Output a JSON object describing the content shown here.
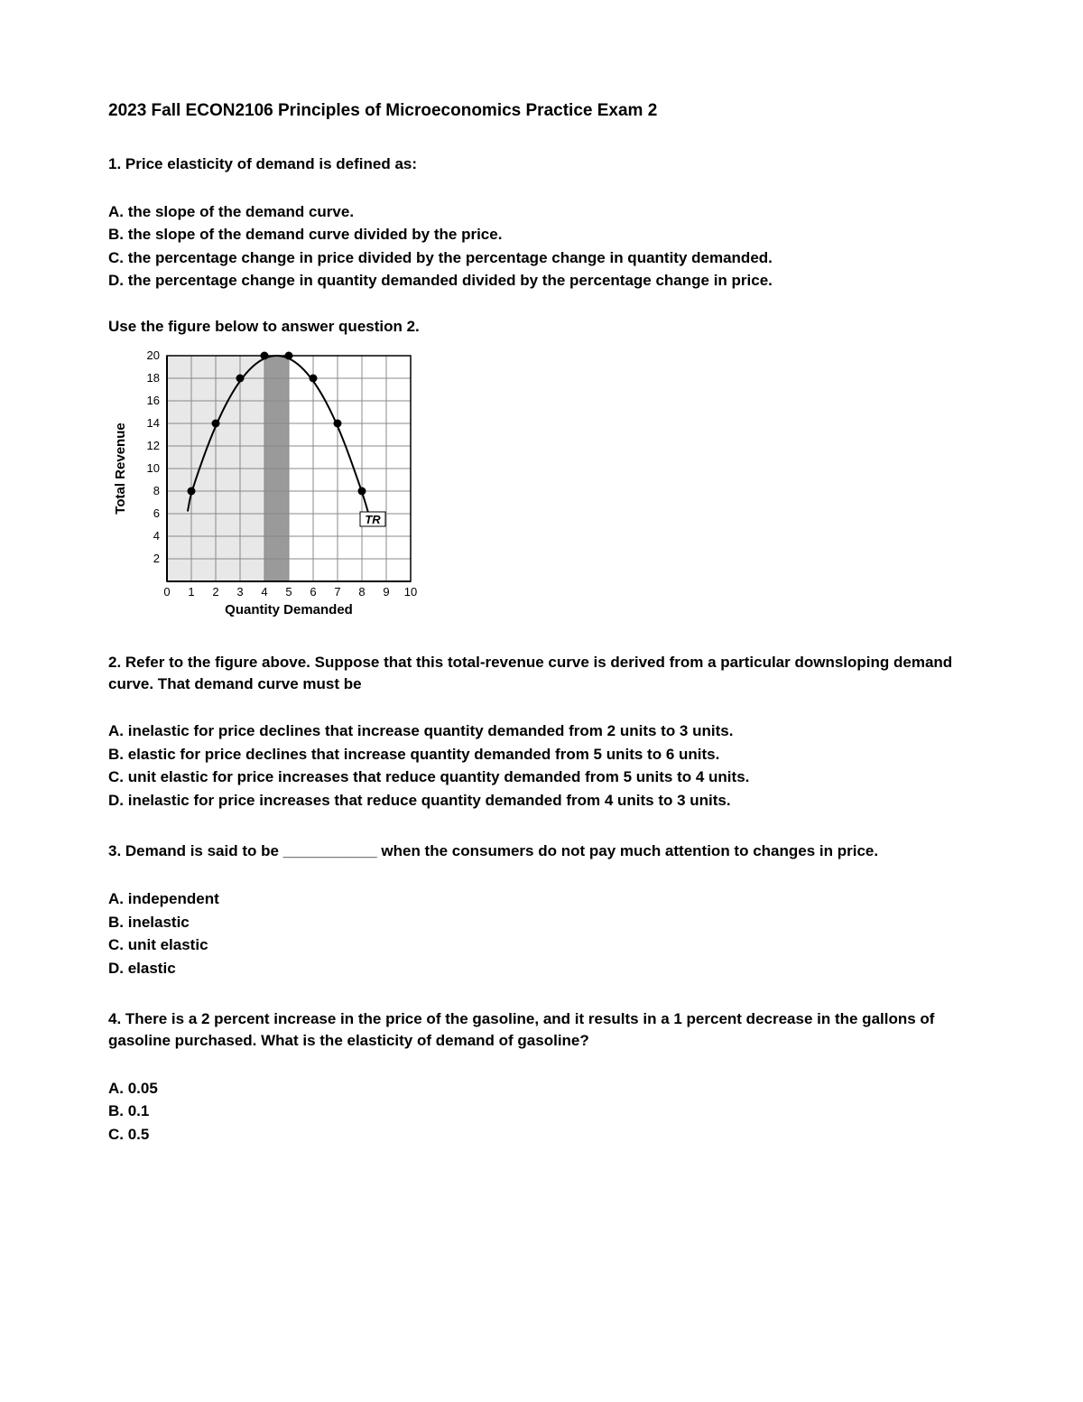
{
  "title": "2023 Fall ECON2106 Principles of Microeconomics Practice Exam 2",
  "q1": {
    "prompt": "1. Price elasticity of demand is defined as:",
    "a": "A. the slope of the demand curve.",
    "b": "B. the slope of the demand curve divided by the price.",
    "c": "C. the percentage change in price divided by the percentage change in quantity demanded.",
    "d": "D. the percentage change in quantity demanded divided by the percentage change in price."
  },
  "figure_instruction": "Use the figure below to answer question 2.",
  "chart": {
    "type": "line",
    "ylabel": "Total Revenue",
    "xlabel": "Quantity Demanded",
    "curve_label": "TR",
    "x_ticks": [
      0,
      1,
      2,
      3,
      4,
      5,
      6,
      7,
      8,
      9,
      10
    ],
    "y_ticks": [
      0,
      2,
      4,
      6,
      8,
      10,
      12,
      14,
      16,
      18,
      20
    ],
    "xlim": [
      0,
      10
    ],
    "ylim": [
      0,
      20
    ],
    "points": [
      {
        "x": 1,
        "y": 8
      },
      {
        "x": 2,
        "y": 14
      },
      {
        "x": 3,
        "y": 18
      },
      {
        "x": 4,
        "y": 20
      },
      {
        "x": 5,
        "y": 20
      },
      {
        "x": 6,
        "y": 18
      },
      {
        "x": 7,
        "y": 14
      },
      {
        "x": 8,
        "y": 8
      }
    ],
    "shaded_band": {
      "x_start": 0,
      "x_end": 5
    },
    "dark_band": {
      "x_start": 4,
      "x_end": 5
    },
    "colors": {
      "background": "#ffffff",
      "shaded": "#e8e8e8",
      "dark_shaded": "#9a9a9a",
      "grid": "#888888",
      "axis": "#000000",
      "curve": "#000000",
      "point_fill": "#000000",
      "text": "#000000"
    },
    "line_width": 2,
    "marker_radius": 4.5,
    "axis_fontsize": 13,
    "label_fontsize": 15,
    "label_fontweight": "bold"
  },
  "q2": {
    "prompt": "2. Refer to the figure above. Suppose that this total-revenue curve is derived from a particular downsloping demand curve. That demand curve must be",
    "a": "A. inelastic for price declines that increase quantity demanded from 2 units to 3 units.",
    "b": "B. elastic for price declines that increase quantity demanded from 5 units to 6 units.",
    "c": "C. unit elastic for price increases that reduce quantity demanded from 5 units to 4 units.",
    "d": "D. inelastic for price increases that reduce quantity demanded from 4 units to 3 units."
  },
  "q3": {
    "prompt": "3. Demand is said to be ___________ when the consumers do not pay much attention to changes in price.",
    "a": "A. independent",
    "b": "B. inelastic",
    "c": "C. unit elastic",
    "d": "D. elastic"
  },
  "q4": {
    "prompt": "4. There is a 2 percent increase in the price of the gasoline, and it results in a 1 percent decrease in the gallons of gasoline purchased.  What is the elasticity of demand of gasoline?",
    "a": "A. 0.05",
    "b": "B. 0.1",
    "c": "C. 0.5"
  }
}
